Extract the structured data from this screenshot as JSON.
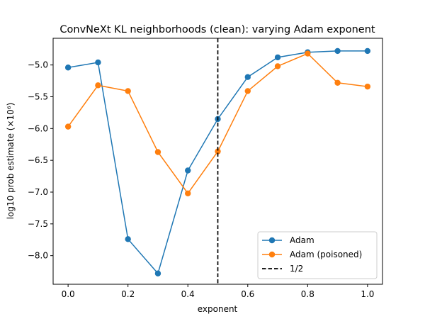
{
  "chart_data": {
    "type": "line",
    "title": "ConvNeXt KL neighborhoods (clean): varying Adam exponent",
    "xlabel": "exponent",
    "ylabel": "log10 prob estimate (×10⁶)",
    "xlim": [
      -0.05,
      1.05
    ],
    "ylim": [
      -8.45,
      -4.58
    ],
    "xticks": [
      "0.0",
      "0.2",
      "0.4",
      "0.6",
      "0.8",
      "1.0"
    ],
    "yticks": [
      "−5.0",
      "−5.5",
      "−6.0",
      "−6.5",
      "−7.0",
      "−7.5",
      "−8.0"
    ],
    "x": [
      0.0,
      0.1,
      0.2,
      0.3,
      0.4,
      0.5,
      0.6,
      0.7,
      0.8,
      0.9,
      1.0
    ],
    "series": [
      {
        "name": "Adam",
        "color": "#1f77b4",
        "marker": "circle",
        "values": [
          -5.04,
          -4.96,
          -7.74,
          -8.28,
          -6.66,
          -5.85,
          -5.19,
          -4.88,
          -4.8,
          -4.78,
          -4.78
        ]
      },
      {
        "name": "Adam (poisoned)",
        "color": "#ff7f0e",
        "marker": "circle",
        "values": [
          -5.97,
          -5.32,
          -5.41,
          -6.37,
          -7.02,
          -6.36,
          -5.41,
          -5.02,
          -4.82,
          -5.28,
          -5.34
        ]
      }
    ],
    "vlines": [
      {
        "name": "1/2",
        "x": 0.5,
        "color": "#000000",
        "style": "dashed"
      }
    ],
    "legend": {
      "position": "lower-right",
      "entries": [
        "Adam",
        "Adam (poisoned)",
        "1/2"
      ]
    },
    "grid": false
  }
}
